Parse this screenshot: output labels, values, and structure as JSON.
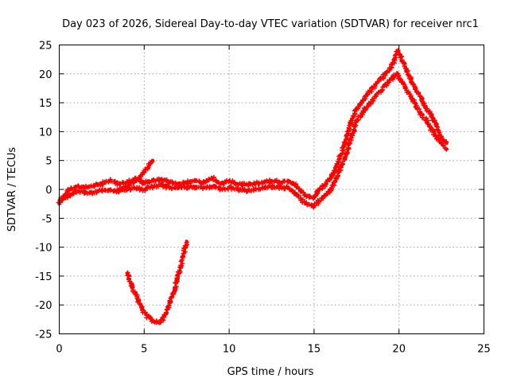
{
  "chart_data": {
    "type": "scatter",
    "title": "Day 023 of 2026, Sidereal Day-to-day VTEC variation (SDTVAR) for receiver nrc1",
    "xlabel": "GPS time / hours",
    "ylabel": "SDTVAR / TECUs",
    "xlim": [
      0,
      25
    ],
    "ylim": [
      -25,
      25
    ],
    "xticks": [
      0,
      5,
      10,
      15,
      20,
      25
    ],
    "yticks": [
      -25,
      -20,
      -15,
      -10,
      -5,
      0,
      5,
      10,
      15,
      20,
      25
    ],
    "grid": true,
    "marker": "plus",
    "color": "#ff0000",
    "series": [
      {
        "name": "main-track-upper",
        "x": [
          0,
          0.3,
          0.6,
          1,
          1.5,
          2,
          2.5,
          3,
          3.5,
          4,
          4.5,
          5,
          5.5,
          6,
          6.5,
          7,
          7.5,
          8,
          8.5,
          9,
          9.5,
          10,
          10.5,
          11,
          11.5,
          12,
          12.5,
          13,
          13.5,
          14,
          14.5,
          15,
          15.3,
          15.7,
          16,
          16.3,
          16.6,
          16.9,
          17.2,
          17.5,
          17.8,
          18,
          18.3,
          18.6,
          18.9,
          19.2,
          19.5,
          19.7,
          19.9,
          20.1,
          20.4,
          20.7,
          21,
          21.3,
          21.6,
          21.9,
          22.2,
          22.5,
          22.8
        ],
        "y": [
          -2,
          -1,
          0,
          0.5,
          0.3,
          0.5,
          1,
          1.5,
          1,
          1.2,
          1.8,
          1.2,
          1.5,
          1.8,
          1.3,
          1.0,
          1.2,
          1.5,
          1.2,
          2.0,
          1.0,
          1.5,
          1.0,
          0.8,
          1.0,
          1.2,
          1.5,
          1.2,
          1.5,
          0.5,
          -1,
          -1.5,
          0,
          1,
          2,
          4,
          6,
          9,
          12,
          14,
          15,
          16,
          17,
          18,
          19,
          20,
          21,
          22,
          24,
          23,
          21,
          19,
          17,
          16,
          14,
          13,
          11,
          9,
          8
        ]
      },
      {
        "name": "main-track-lower",
        "x": [
          0,
          0.3,
          0.6,
          1,
          1.5,
          2,
          2.5,
          3,
          3.5,
          4,
          4.5,
          5,
          5.5,
          6,
          6.5,
          7,
          7.5,
          8,
          8.5,
          9,
          9.5,
          10,
          10.5,
          11,
          11.5,
          12,
          12.5,
          13,
          13.5,
          14,
          14.5,
          15,
          15.3,
          15.7,
          16,
          16.3,
          16.6,
          16.9,
          17.2,
          17.5,
          17.8,
          18,
          18.3,
          18.6,
          18.9,
          19.2,
          19.5,
          19.7,
          19.9,
          20.1,
          20.4,
          20.7,
          21,
          21.3,
          21.6,
          21.9,
          22.2,
          22.5,
          22.8
        ],
        "y": [
          -2.5,
          -1.5,
          -1,
          -0.3,
          -0.5,
          -0.5,
          -0.2,
          0,
          -0.3,
          0,
          0.2,
          0,
          0.5,
          0.8,
          0.3,
          0.2,
          0.3,
          0.5,
          0.3,
          0.5,
          0,
          0.3,
          0,
          -0.2,
          0,
          0.3,
          0.5,
          0.3,
          0.3,
          -1,
          -2.5,
          -3,
          -2,
          -1,
          0,
          2,
          4,
          6,
          9,
          12,
          13,
          14,
          15,
          16,
          17,
          18,
          19,
          19.5,
          20,
          19,
          17.5,
          16,
          14.5,
          13,
          12,
          10.5,
          9,
          8,
          7
        ]
      },
      {
        "name": "rising-arc",
        "x": [
          3.5,
          4,
          4.5,
          5,
          5.5
        ],
        "y": [
          0,
          0.5,
          1.5,
          3,
          5
        ]
      },
      {
        "name": "negative-arc",
        "x": [
          4.0,
          4.3,
          4.6,
          4.9,
          5.2,
          5.5,
          5.8,
          6.1,
          6.4,
          6.7,
          7.0,
          7.3,
          7.5
        ],
        "y": [
          -14.5,
          -17,
          -19,
          -20.8,
          -22,
          -22.8,
          -23,
          -22.5,
          -20.5,
          -18,
          -15,
          -11.5,
          -9
        ]
      }
    ]
  }
}
